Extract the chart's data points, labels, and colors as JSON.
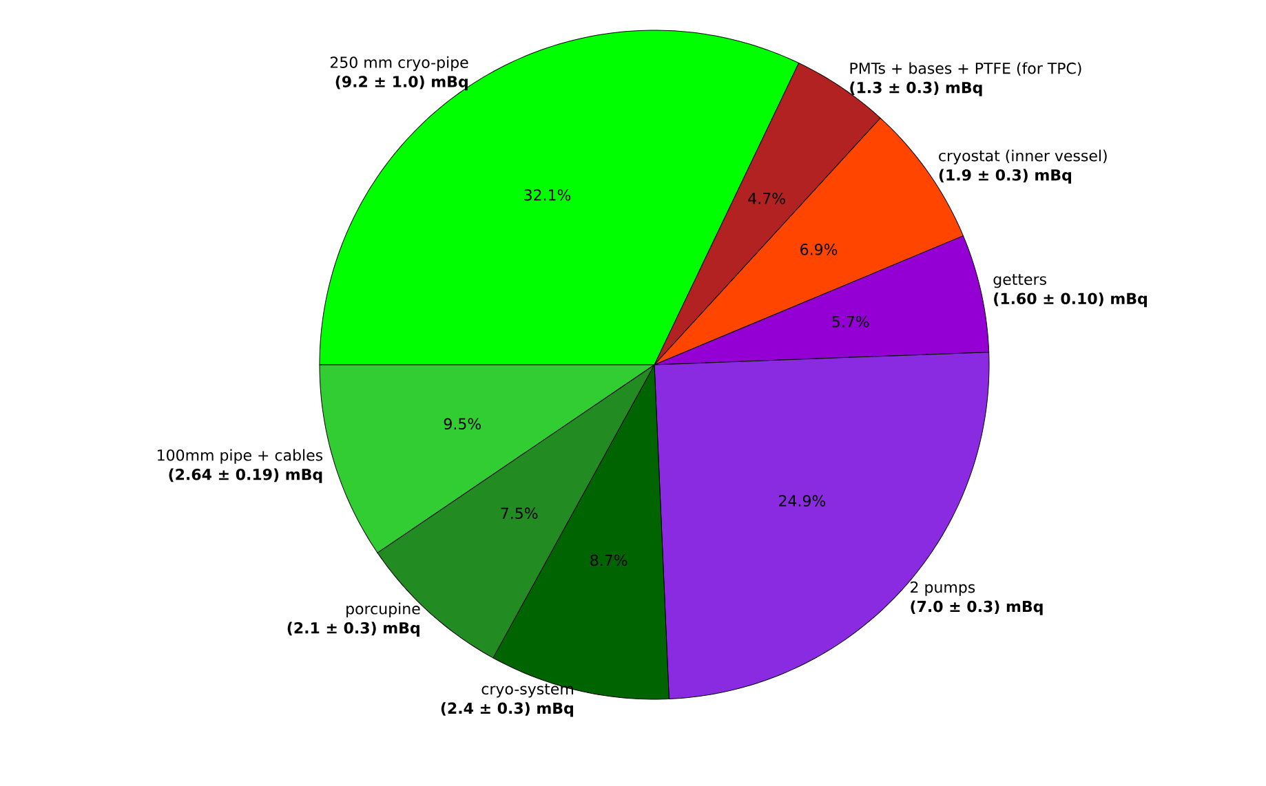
{
  "chart_data": {
    "type": "pie",
    "categories": [
      "250 mm cryo-pipe",
      "PMTs + bases + PTFE (for TPC)",
      "cryostat (inner vessel)",
      "getters",
      "2 pumps",
      "cryo-system",
      "porcupine",
      "100mm pipe + cables"
    ],
    "values": [
      32.1,
      4.7,
      6.9,
      5.7,
      24.9,
      8.7,
      7.5,
      9.5
    ],
    "value_labels": [
      "32.1%",
      "4.7%",
      "6.9%",
      "5.7%",
      "24.9%",
      "8.7%",
      "7.5%",
      "9.5%"
    ],
    "colors": [
      "#00ff00",
      "#b22222",
      "#ff4500",
      "#9400d3",
      "#8a2be2",
      "#006400",
      "#228b22",
      "#32cd32"
    ],
    "annotations": [
      "(9.2 ± 1.0) mBq",
      "(1.3 ± 0.3) mBq",
      "(1.9 ± 0.3) mBq",
      "(1.60 ± 0.10) mBq",
      "(7.0 ± 0.3) mBq",
      "(2.4 ± 0.3) mBq",
      "(2.1 ± 0.3) mBq",
      "(2.64 ± 0.19) mBq"
    ]
  }
}
